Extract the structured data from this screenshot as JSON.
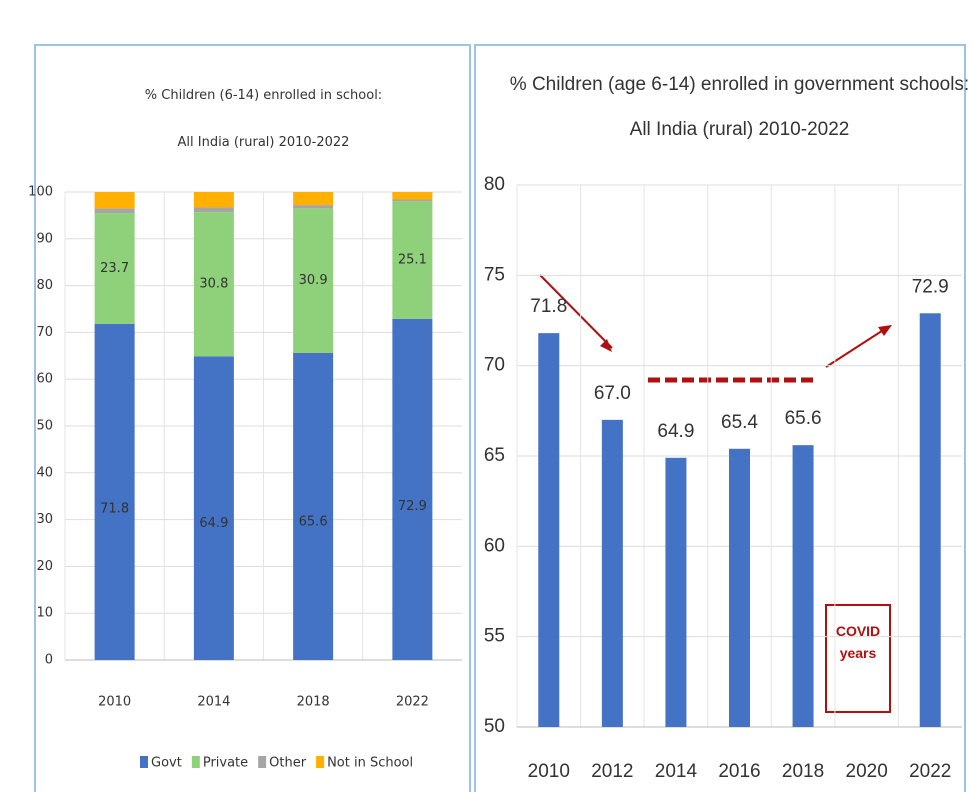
{
  "chart_data": [
    {
      "type": "stacked_bar",
      "title": "% Children (6-14) enrolled in school: All India (rural) 2010-2022",
      "categories": [
        "2010",
        "2014",
        "2018",
        "2022"
      ],
      "series": [
        {
          "name": "Govt",
          "color": "#4472c4",
          "values": [
            71.8,
            64.9,
            65.6,
            72.9
          ],
          "value_labels": [
            "71.8",
            "64.9",
            "65.6",
            "72.9"
          ]
        },
        {
          "name": "Private",
          "color": "#8fd17a",
          "values": [
            23.7,
            30.8,
            30.9,
            25.1
          ],
          "value_labels": [
            "23.7",
            "30.8",
            "30.9",
            "25.1"
          ]
        },
        {
          "name": "Other",
          "color": "#a5a5a5",
          "values": [
            1.0,
            1.0,
            0.7,
            0.4
          ]
        },
        {
          "name": "Not in School",
          "color": "#ffb000",
          "values": [
            3.5,
            3.3,
            2.8,
            1.6
          ]
        }
      ],
      "ylim": [
        0,
        100
      ],
      "yticks": [
        0,
        10,
        20,
        30,
        40,
        50,
        60,
        70,
        80,
        90,
        100
      ],
      "grid": true,
      "legend": "bottom"
    },
    {
      "type": "bar",
      "title": "% Children (age 6-14) enrolled in government schools: All India (rural) 2010-2022",
      "categories": [
        "2010",
        "2012",
        "2014",
        "2016",
        "2018",
        "2020",
        "2022"
      ],
      "values": [
        71.8,
        67,
        64.9,
        65.4,
        65.6,
        null,
        72.9
      ],
      "value_labels": [
        "71.8",
        "67.0",
        "64.9",
        "65.4",
        "65.6",
        null,
        "72.9"
      ],
      "color": "#4472c4",
      "ylim": [
        50,
        80
      ],
      "yticks": [
        50,
        55,
        60,
        65,
        70,
        75,
        80
      ],
      "grid": true,
      "annotation": "COVID years"
    }
  ]
}
